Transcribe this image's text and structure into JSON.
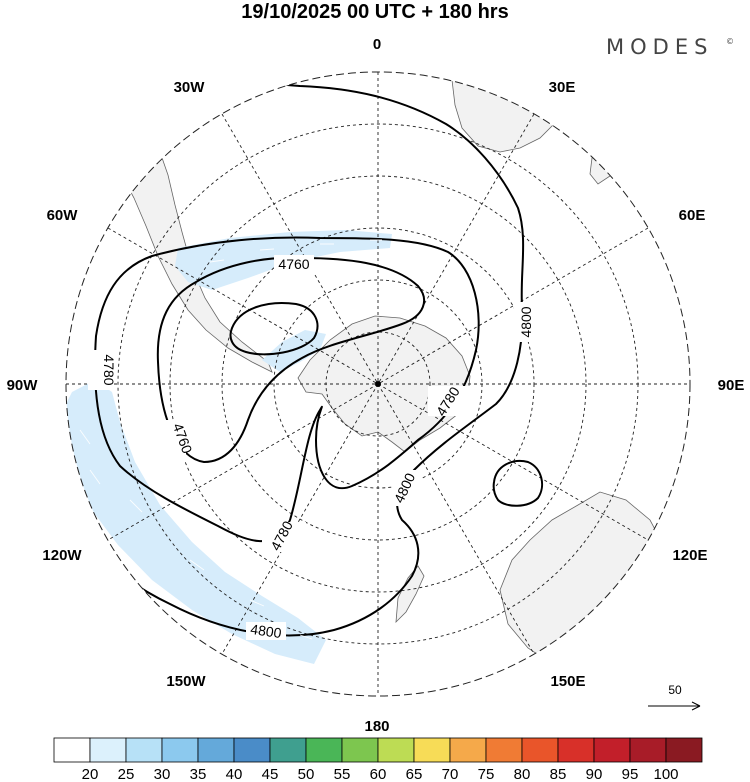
{
  "header": {
    "title": "19/10/2025  00 UTC  + 180 hrs",
    "brand": "MODES",
    "brand_mark": "©"
  },
  "map": {
    "projection": "south polar stereographic",
    "longitude_labels": {
      "top": "0",
      "upper_right": "30E",
      "right_upper": "60E",
      "right": "90E",
      "right_lower": "120E",
      "lower_right": "150E",
      "bottom": "180",
      "lower_left": "150W",
      "left_lower": "120W",
      "left": "90W",
      "left_upper": "60W",
      "upper_left": "30W"
    },
    "contour_labels": {
      "c1": "4760",
      "c2": "4760",
      "c3": "4780",
      "c4": "4780",
      "c5": "4780",
      "c6": "4800",
      "c7": "4800",
      "c8": "4800"
    },
    "reference_vector": "50"
  },
  "colorbar": {
    "labels": [
      "20",
      "25",
      "30",
      "35",
      "40",
      "45",
      "50",
      "55",
      "60",
      "65",
      "70",
      "75",
      "80",
      "85",
      "90",
      "95",
      "100"
    ],
    "colors": [
      "#ffffff",
      "#dcf1fc",
      "#b7e1f7",
      "#8cc9ee",
      "#64a9da",
      "#4a8cc8",
      "#3f9f8f",
      "#4ab657",
      "#7dc64f",
      "#bddc54",
      "#f7dc57",
      "#f5a94a",
      "#f07b34",
      "#e9552a",
      "#d83029",
      "#c21f2a",
      "#a81c28",
      "#8a1a22"
    ]
  },
  "colors": {
    "land": "#f2f2f2",
    "wind_shade": "#d6ecfb",
    "contour": "#000000"
  }
}
